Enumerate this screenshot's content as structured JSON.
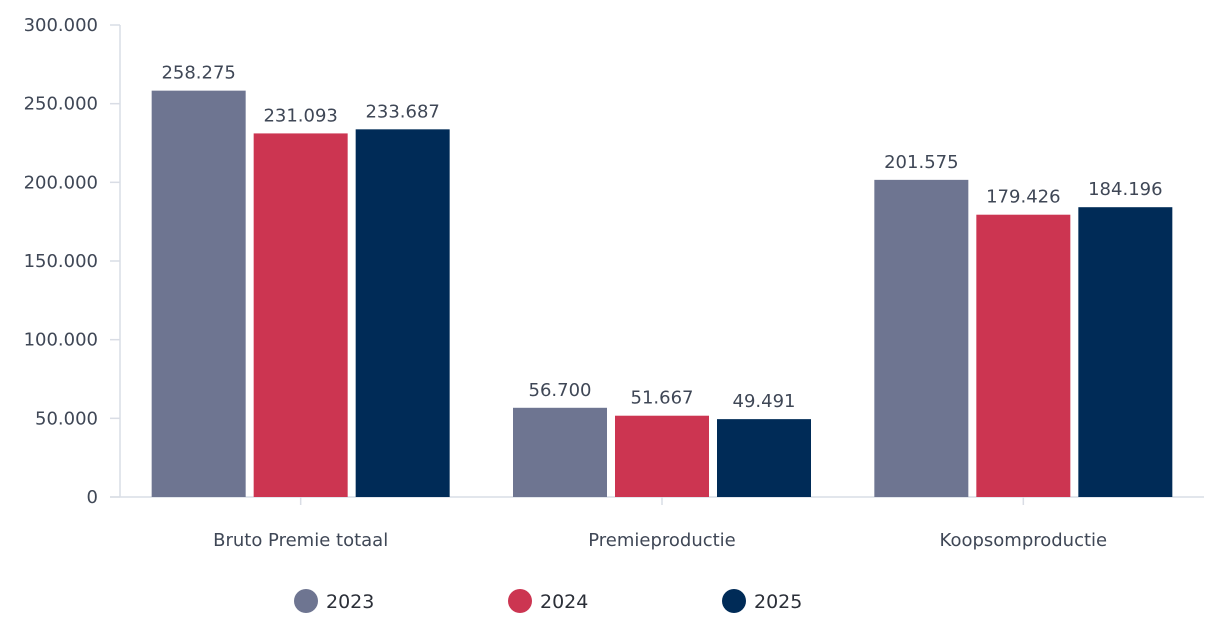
{
  "chart_data": {
    "type": "bar",
    "categories": [
      "Bruto Premie totaal",
      "Premieproductie",
      "Koopsomproductie"
    ],
    "series": [
      {
        "name": "2023",
        "color": "#6e7591",
        "values": [
          258275,
          56700,
          201575
        ],
        "labels": [
          "258.275",
          "56.700",
          "201.575"
        ]
      },
      {
        "name": "2024",
        "color": "#cc3551",
        "values": [
          231093,
          51667,
          179426
        ],
        "labels": [
          "231.093",
          "51.667",
          "179.426"
        ]
      },
      {
        "name": "2025",
        "color": "#002b57",
        "values": [
          233687,
          49491,
          184196
        ],
        "labels": [
          "233.687",
          "49.491",
          "184.196"
        ]
      }
    ],
    "ylim": [
      0,
      300000
    ],
    "yticks": [
      0,
      50000,
      100000,
      150000,
      200000,
      250000,
      300000
    ],
    "ytick_labels": [
      "0",
      "50.000",
      "100.000",
      "150.000",
      "200.000",
      "250.000",
      "300.000"
    ],
    "grid": false,
    "legend": "bottom-center",
    "title": "",
    "xlabel": "",
    "ylabel": ""
  }
}
